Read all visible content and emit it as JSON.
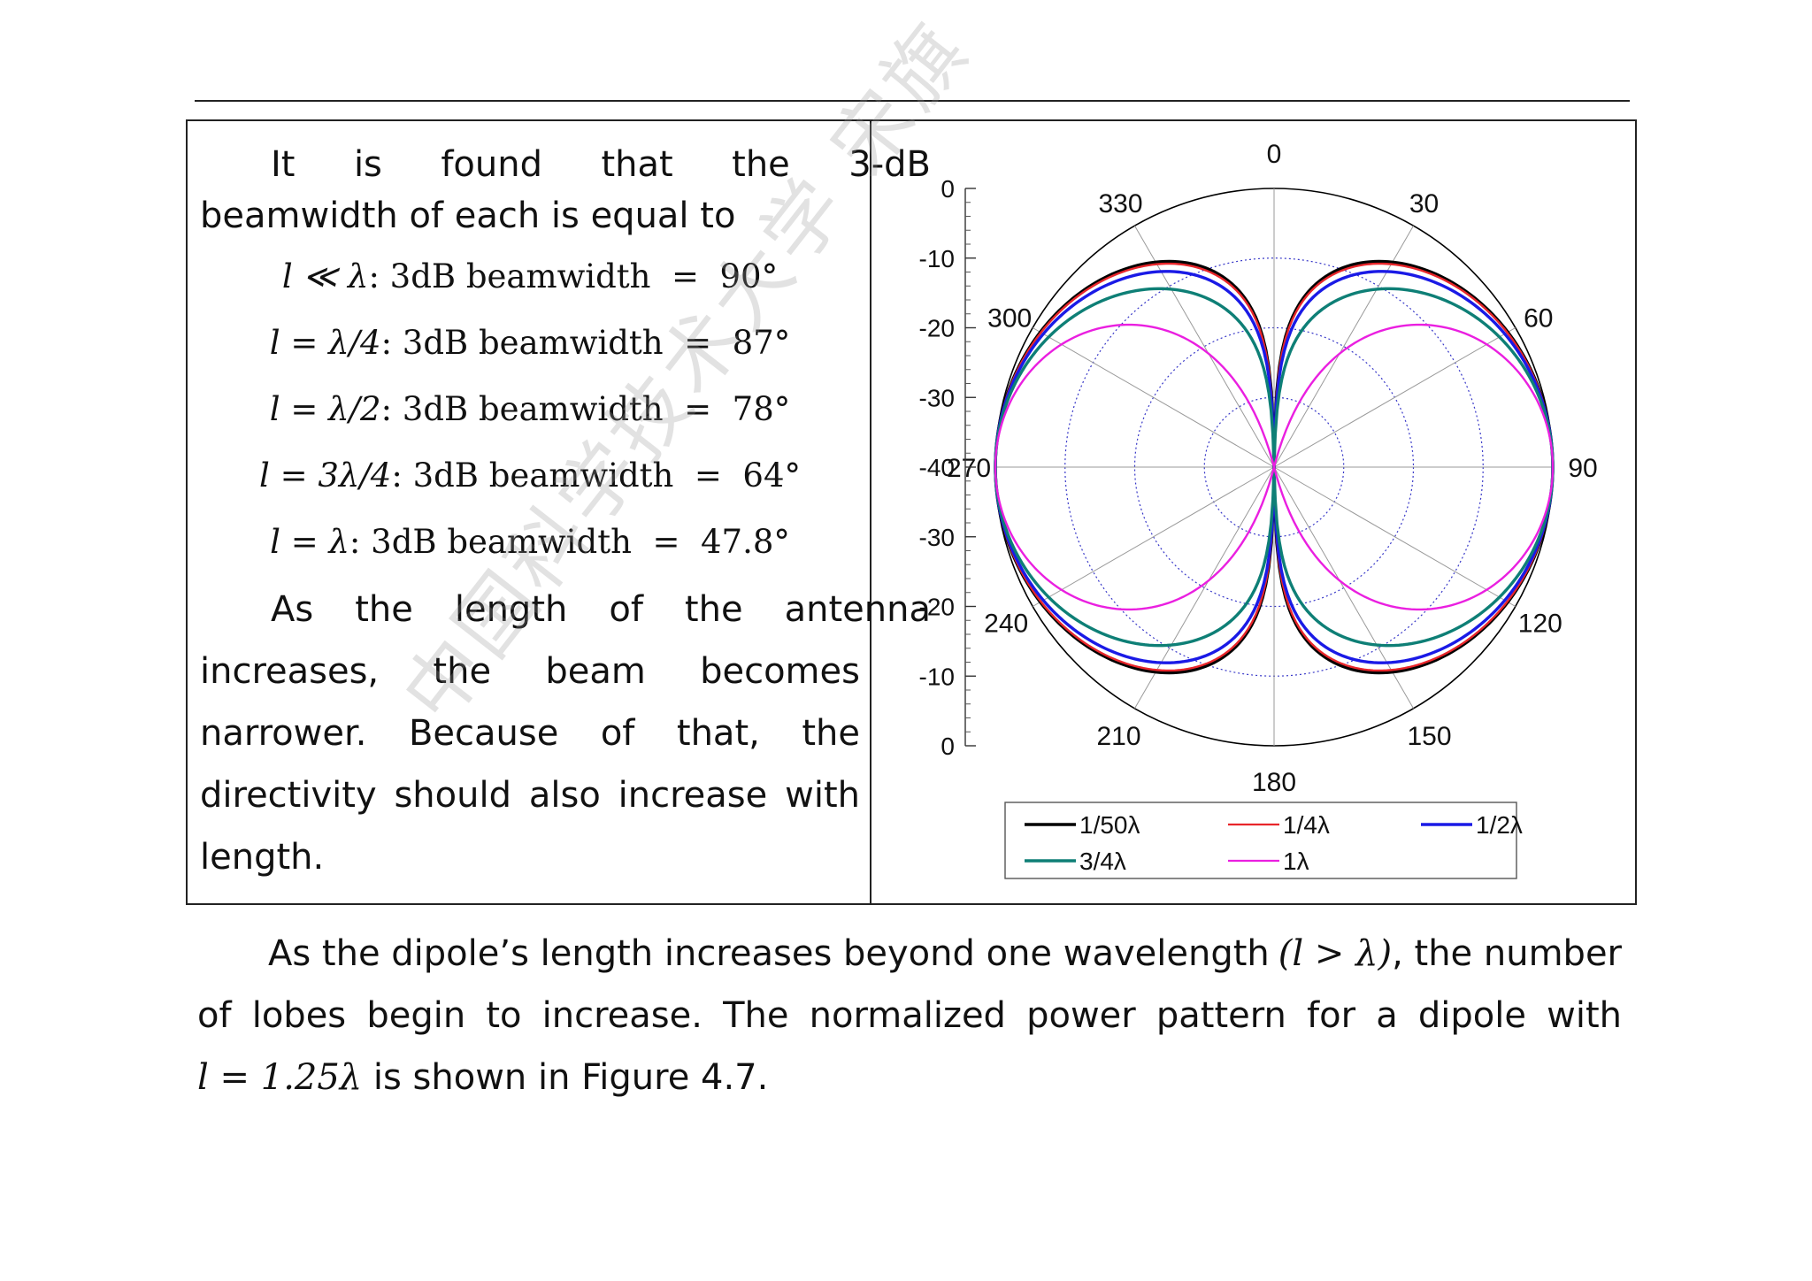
{
  "intro": {
    "line1_words": [
      "It",
      "is",
      "found",
      "that",
      "the",
      "3-dB"
    ],
    "line2": "beamwidth of each is equal to"
  },
  "equations": [
    {
      "lhs": "l ≪ λ",
      "label": ": 3dB beamwidth",
      "value": "90°"
    },
    {
      "lhs": "l = λ/4",
      "label": ": 3dB beamwidth",
      "value": "87°"
    },
    {
      "lhs": "l = λ/2",
      "label": ": 3dB beamwidth",
      "value": "78°"
    },
    {
      "lhs": "l = 3λ/4",
      "label": ": 3dB beamwidth",
      "value": "64°"
    },
    {
      "lhs": "l = λ",
      "label": ": 3dB beamwidth",
      "value": "47.8°"
    }
  ],
  "para1": {
    "line1_words": [
      "As",
      "the",
      "length",
      "of",
      "the",
      "antenna"
    ],
    "line2_words": [
      "increases,",
      "the",
      "beam",
      "becomes"
    ],
    "line3_words": [
      "narrower.",
      "Because",
      "of",
      "that,",
      "the"
    ],
    "line4_words": [
      "directivity",
      "should",
      "also",
      "increase",
      "with"
    ],
    "line5": "length."
  },
  "para2": {
    "line1_text": "As the dipole’s length increases beyond one wavelength",
    "line1_math": "(l > λ)",
    "line1_tail": ", the number",
    "line2_words": [
      "of",
      "lobes",
      "begin",
      "to",
      "increase.",
      "The",
      "normalized",
      "power",
      "pattern",
      "for",
      "a",
      "dipole",
      "with"
    ],
    "line3_math": "l = 1.25λ",
    "line3_text": "is shown in Figure 4.7."
  },
  "watermark": "中国科学技术大学 宋旗",
  "chart_data": {
    "type": "polar-line",
    "scale": "dB",
    "radial_ticks": [
      "0",
      "-10",
      "-20",
      "-30",
      "-40",
      "-30",
      "-20",
      "-10",
      "0"
    ],
    "rlim": [
      -40,
      0
    ],
    "angle_ticks": [
      "0",
      "30",
      "60",
      "90",
      "120",
      "150",
      "180",
      "210",
      "240",
      "270",
      "300",
      "330"
    ],
    "angle_step_deg": 30,
    "grid": true,
    "legend_position": "bottom",
    "series": [
      {
        "name": "1/50λ",
        "color": "#000000",
        "beamwidth_deg": 90,
        "length_wl": 0.02,
        "pattern": "cos(θ)^2"
      },
      {
        "name": "1/4λ",
        "color": "#e8262b",
        "beamwidth_deg": 87,
        "length_wl": 0.25
      },
      {
        "name": "1/2λ",
        "color": "#1a1ae6",
        "beamwidth_deg": 78,
        "length_wl": 0.5
      },
      {
        "name": "3/4λ",
        "color": "#0e7f76",
        "beamwidth_deg": 64,
        "length_wl": 0.75
      },
      {
        "name": "1λ",
        "color": "#ea1fe0",
        "beamwidth_deg": 47.8,
        "length_wl": 1.0
      }
    ]
  }
}
